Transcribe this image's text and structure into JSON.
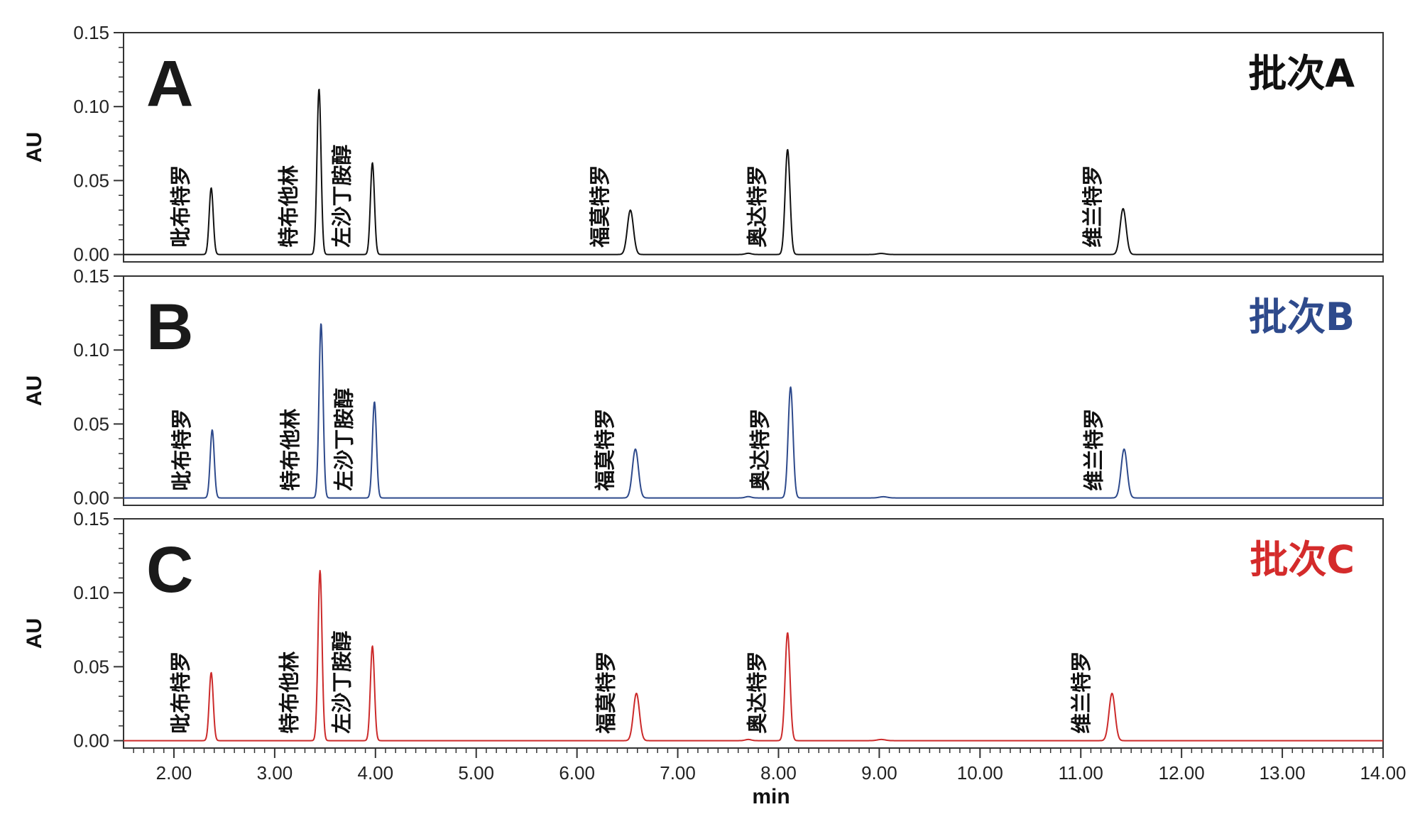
{
  "chart_data": {
    "type": "line",
    "x_axis": {
      "label": "min",
      "range": [
        1.5,
        14.0
      ],
      "ticks": [
        2.0,
        3.0,
        4.0,
        5.0,
        6.0,
        7.0,
        8.0,
        9.0,
        10.0,
        11.0,
        12.0,
        13.0,
        14.0
      ],
      "tick_labels": [
        "2.00",
        "3.00",
        "4.00",
        "5.00",
        "6.00",
        "7.00",
        "8.00",
        "9.00",
        "10.00",
        "11.00",
        "12.00",
        "13.00",
        "14.00"
      ]
    },
    "y_axis": {
      "label": "AU",
      "range": [
        -0.005,
        0.15
      ],
      "ticks": [
        0.0,
        0.05,
        0.1,
        0.15
      ],
      "tick_labels": [
        "0.00",
        "0.05",
        "0.10",
        "0.15"
      ]
    },
    "panels": [
      {
        "letter": "A",
        "batch": "批次A",
        "color": "#111111",
        "label_color": "#111111",
        "peaks": [
          {
            "name": "吡布特罗",
            "rt": 2.37,
            "height": 0.045,
            "width": 0.02
          },
          {
            "name": "特布他林",
            "rt": 3.44,
            "height": 0.112,
            "width": 0.02
          },
          {
            "name": "左沙丁胺醇",
            "rt": 3.97,
            "height": 0.062,
            "width": 0.02
          },
          {
            "name": "福莫特罗",
            "rt": 6.53,
            "height": 0.03,
            "width": 0.03
          },
          {
            "name": "奥达特罗",
            "rt": 8.09,
            "height": 0.071,
            "width": 0.024
          },
          {
            "name": "维兰特罗",
            "rt": 11.42,
            "height": 0.031,
            "width": 0.03
          }
        ],
        "minor_peaks": [
          {
            "rt": 7.7,
            "height": 0.0008,
            "width": 0.03
          },
          {
            "rt": 9.02,
            "height": 0.0007,
            "width": 0.04
          }
        ]
      },
      {
        "letter": "B",
        "batch": "批次B",
        "color": "#2e4a8c",
        "label_color": "#2e4a8c",
        "peaks": [
          {
            "name": "吡布特罗",
            "rt": 2.38,
            "height": 0.046,
            "width": 0.02
          },
          {
            "name": "特布他林",
            "rt": 3.46,
            "height": 0.118,
            "width": 0.02
          },
          {
            "name": "左沙丁胺醇",
            "rt": 3.99,
            "height": 0.065,
            "width": 0.02
          },
          {
            "name": "福莫特罗",
            "rt": 6.58,
            "height": 0.033,
            "width": 0.03
          },
          {
            "name": "奥达特罗",
            "rt": 8.12,
            "height": 0.075,
            "width": 0.024
          },
          {
            "name": "维兰特罗",
            "rt": 11.43,
            "height": 0.033,
            "width": 0.03
          }
        ],
        "minor_peaks": [
          {
            "rt": 7.7,
            "height": 0.0009,
            "width": 0.03
          },
          {
            "rt": 9.04,
            "height": 0.0008,
            "width": 0.04
          }
        ]
      },
      {
        "letter": "C",
        "batch": "批次C",
        "color": "#cc2a2a",
        "label_color": "#d42b2b",
        "peaks": [
          {
            "name": "吡布特罗",
            "rt": 2.37,
            "height": 0.046,
            "width": 0.02
          },
          {
            "name": "特布他林",
            "rt": 3.45,
            "height": 0.115,
            "width": 0.02
          },
          {
            "name": "左沙丁胺醇",
            "rt": 3.97,
            "height": 0.064,
            "width": 0.02
          },
          {
            "name": "福莫特罗",
            "rt": 6.59,
            "height": 0.032,
            "width": 0.03
          },
          {
            "name": "奥达特罗",
            "rt": 8.09,
            "height": 0.073,
            "width": 0.024
          },
          {
            "name": "维兰特罗",
            "rt": 11.31,
            "height": 0.032,
            "width": 0.03
          }
        ],
        "minor_peaks": [
          {
            "rt": 7.7,
            "height": 0.0008,
            "width": 0.03
          },
          {
            "rt": 9.02,
            "height": 0.0008,
            "width": 0.04
          }
        ]
      }
    ]
  }
}
